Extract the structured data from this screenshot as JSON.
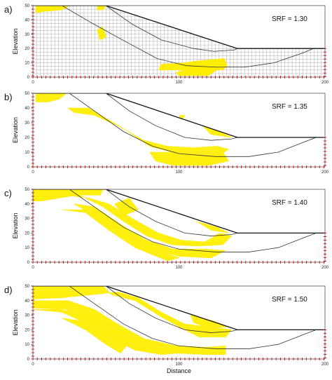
{
  "figure": {
    "x_axis_label": "Distance",
    "y_axis_label": "Elevation"
  },
  "chart_data": [
    {
      "type": "area",
      "panel": "a)",
      "annotation": "SRF = 1.30",
      "xlim": [
        0,
        200
      ],
      "ylim": [
        0,
        50
      ],
      "x_ticks": [
        0,
        100,
        200
      ],
      "y_ticks": [
        0,
        10,
        20,
        30,
        40,
        50
      ],
      "show_mesh": true,
      "slope_surface": [
        [
          0,
          50
        ],
        [
          50,
          50
        ],
        [
          140,
          20
        ],
        [
          200,
          20
        ]
      ],
      "inner_slip_curve": [
        [
          50,
          50
        ],
        [
          68,
          37
        ],
        [
          88,
          26
        ],
        [
          110,
          20
        ],
        [
          124,
          18
        ],
        [
          138,
          19
        ],
        [
          140,
          20
        ]
      ],
      "outer_slip_curve": [
        [
          20,
          50
        ],
        [
          40,
          38
        ],
        [
          65,
          24
        ],
        [
          85,
          13
        ],
        [
          105,
          8
        ],
        [
          125,
          7
        ],
        [
          145,
          7
        ],
        [
          165,
          10
        ],
        [
          185,
          17
        ],
        [
          192,
          20
        ]
      ],
      "plastic_zones": [
        [
          [
            2,
            50
          ],
          [
            25,
            50
          ],
          [
            20,
            47
          ],
          [
            8,
            46
          ],
          [
            2,
            45
          ]
        ],
        [
          [
            44,
            50
          ],
          [
            50,
            50
          ],
          [
            48,
            47
          ],
          [
            44,
            47
          ]
        ],
        [
          [
            44,
            33
          ],
          [
            48,
            35
          ],
          [
            50,
            28
          ],
          [
            46,
            26
          ]
        ],
        [
          [
            105,
            5
          ],
          [
            130,
            5
          ],
          [
            133,
            8
          ],
          [
            131,
            13
          ],
          [
            120,
            12
          ],
          [
            110,
            11
          ],
          [
            104,
            10
          ],
          [
            88,
            9
          ],
          [
            86,
            5
          ]
        ],
        [
          [
            100,
            1
          ],
          [
            120,
            1
          ],
          [
            126,
            5
          ],
          [
            103,
            5
          ],
          [
            98,
            3
          ]
        ]
      ]
    },
    {
      "type": "area",
      "panel": "b)",
      "annotation": "SRF = 1.35",
      "xlim": [
        0,
        200
      ],
      "ylim": [
        0,
        50
      ],
      "x_ticks": [
        0,
        100,
        200
      ],
      "y_ticks": [
        0,
        10,
        20,
        30,
        40,
        50
      ],
      "show_mesh": false,
      "slope_surface": [
        [
          0,
          50
        ],
        [
          50,
          50
        ],
        [
          140,
          20
        ],
        [
          200,
          20
        ]
      ],
      "inner_slip_curve": [
        [
          50,
          50
        ],
        [
          66,
          38
        ],
        [
          84,
          28
        ],
        [
          104,
          20
        ],
        [
          122,
          18
        ],
        [
          136,
          19
        ],
        [
          140,
          20
        ]
      ],
      "outer_slip_curve": [
        [
          25,
          50
        ],
        [
          42,
          38
        ],
        [
          62,
          24
        ],
        [
          82,
          14
        ],
        [
          100,
          9
        ],
        [
          125,
          7
        ],
        [
          148,
          7
        ],
        [
          168,
          10
        ],
        [
          186,
          17
        ],
        [
          194,
          20
        ]
      ],
      "plastic_zones": [
        [
          [
            2,
            50
          ],
          [
            23,
            50
          ],
          [
            18,
            46
          ],
          [
            10,
            44
          ],
          [
            2,
            44
          ]
        ],
        [
          [
            24,
            40
          ],
          [
            38,
            40
          ],
          [
            62,
            26
          ],
          [
            80,
            14
          ],
          [
            95,
            10
          ],
          [
            125,
            6
          ],
          [
            134,
            12
          ],
          [
            126,
            14
          ],
          [
            110,
            13
          ],
          [
            92,
            14
          ],
          [
            76,
            18
          ],
          [
            58,
            28
          ],
          [
            42,
            35
          ],
          [
            28,
            37
          ]
        ],
        [
          [
            80,
            10
          ],
          [
            130,
            10
          ],
          [
            134,
            4
          ],
          [
            120,
            1
          ],
          [
            96,
            1
          ],
          [
            84,
            4
          ]
        ],
        [
          [
            116,
            28
          ],
          [
            132,
            22
          ],
          [
            136,
            20
          ],
          [
            122,
            22
          ]
        ],
        [
          [
            100,
            35
          ],
          [
            104,
            35
          ],
          [
            102,
            32
          ]
        ]
      ]
    },
    {
      "type": "area",
      "panel": "c)",
      "annotation": "SRF = 1.40",
      "xlim": [
        0,
        200
      ],
      "ylim": [
        0,
        50
      ],
      "x_ticks": [
        0,
        100,
        200
      ],
      "y_ticks": [
        0,
        10,
        20,
        30,
        40,
        50
      ],
      "show_mesh": false,
      "slope_surface": [
        [
          0,
          50
        ],
        [
          50,
          50
        ],
        [
          140,
          20
        ],
        [
          200,
          20
        ]
      ],
      "inner_slip_curve": [
        [
          50,
          50
        ],
        [
          66,
          38
        ],
        [
          84,
          28
        ],
        [
          104,
          20
        ],
        [
          122,
          18
        ],
        [
          136,
          19
        ],
        [
          140,
          20
        ]
      ],
      "outer_slip_curve": [
        [
          25,
          50
        ],
        [
          42,
          38
        ],
        [
          62,
          24
        ],
        [
          82,
          14
        ],
        [
          100,
          9
        ],
        [
          125,
          7
        ],
        [
          148,
          7
        ],
        [
          168,
          10
        ],
        [
          186,
          17
        ],
        [
          194,
          20
        ]
      ],
      "plastic_zones": [
        [
          [
            0,
            50
          ],
          [
            48,
            50
          ],
          [
            46,
            46
          ],
          [
            30,
            46
          ],
          [
            18,
            44
          ],
          [
            6,
            42
          ],
          [
            0,
            42
          ]
        ],
        [
          [
            22,
            46
          ],
          [
            32,
            46
          ],
          [
            48,
            38
          ],
          [
            62,
            28
          ],
          [
            78,
            18
          ],
          [
            95,
            12
          ],
          [
            112,
            11
          ],
          [
            130,
            12
          ],
          [
            136,
            18
          ],
          [
            128,
            20
          ],
          [
            118,
            14
          ],
          [
            102,
            15
          ],
          [
            86,
            20
          ],
          [
            68,
            30
          ],
          [
            52,
            40
          ],
          [
            38,
            44
          ]
        ],
        [
          [
            28,
            40
          ],
          [
            42,
            32
          ],
          [
            60,
            20
          ],
          [
            78,
            10
          ],
          [
            100,
            4
          ],
          [
            122,
            3
          ],
          [
            132,
            8
          ],
          [
            118,
            9
          ],
          [
            96,
            9
          ],
          [
            78,
            15
          ],
          [
            60,
            26
          ],
          [
            42,
            38
          ]
        ],
        [
          [
            20,
            36
          ],
          [
            36,
            34
          ],
          [
            52,
            22
          ],
          [
            70,
            10
          ],
          [
            92,
            1
          ],
          [
            100,
            3
          ],
          [
            80,
            10
          ],
          [
            60,
            22
          ],
          [
            40,
            36
          ]
        ],
        [
          [
            56,
            40
          ],
          [
            66,
            44
          ],
          [
            72,
            36
          ],
          [
            62,
            32
          ]
        ],
        [
          [
            112,
            28
          ],
          [
            126,
            24
          ],
          [
            134,
            20
          ],
          [
            122,
            22
          ]
        ]
      ]
    },
    {
      "type": "area",
      "panel": "d)",
      "annotation": "SRF = 1.50",
      "xlim": [
        0,
        200
      ],
      "ylim": [
        0,
        50
      ],
      "x_ticks": [
        0,
        100,
        200
      ],
      "y_ticks": [
        0,
        10,
        20,
        30,
        40,
        50
      ],
      "show_mesh": false,
      "slope_surface": [
        [
          0,
          50
        ],
        [
          50,
          50
        ],
        [
          140,
          20
        ],
        [
          200,
          20
        ]
      ],
      "inner_slip_curve": [
        [
          50,
          50
        ],
        [
          66,
          38
        ],
        [
          84,
          28
        ],
        [
          104,
          20
        ],
        [
          122,
          18
        ],
        [
          136,
          19
        ],
        [
          140,
          20
        ]
      ],
      "outer_slip_curve": [
        [
          25,
          50
        ],
        [
          42,
          38
        ],
        [
          62,
          24
        ],
        [
          82,
          14
        ],
        [
          100,
          9
        ],
        [
          125,
          7
        ],
        [
          148,
          7
        ],
        [
          168,
          10
        ],
        [
          186,
          17
        ],
        [
          194,
          20
        ]
      ],
      "plastic_zones": [
        [
          [
            0,
            50
          ],
          [
            48,
            50
          ],
          [
            54,
            44
          ],
          [
            70,
            40
          ],
          [
            86,
            30
          ],
          [
            100,
            22
          ],
          [
            114,
            15
          ],
          [
            132,
            15
          ],
          [
            136,
            20
          ],
          [
            120,
            22
          ],
          [
            104,
            24
          ],
          [
            88,
            32
          ],
          [
            72,
            42
          ],
          [
            58,
            46
          ],
          [
            40,
            44
          ],
          [
            20,
            42
          ],
          [
            0,
            41
          ]
        ],
        [
          [
            0,
            40
          ],
          [
            24,
            40
          ],
          [
            42,
            34
          ],
          [
            58,
            24
          ],
          [
            76,
            14
          ],
          [
            98,
            9
          ],
          [
            118,
            8
          ],
          [
            132,
            9
          ],
          [
            132,
            3
          ],
          [
            118,
            3
          ],
          [
            96,
            4
          ],
          [
            76,
            8
          ],
          [
            56,
            18
          ],
          [
            40,
            28
          ],
          [
            22,
            34
          ],
          [
            0,
            35
          ]
        ],
        [
          [
            0,
            34
          ],
          [
            20,
            32
          ],
          [
            38,
            24
          ],
          [
            54,
            14
          ],
          [
            70,
            6
          ],
          [
            88,
            3
          ],
          [
            100,
            4
          ],
          [
            90,
            9
          ],
          [
            74,
            12
          ],
          [
            56,
            22
          ],
          [
            38,
            30
          ],
          [
            18,
            34
          ]
        ],
        [
          [
            20,
            28
          ],
          [
            36,
            20
          ],
          [
            50,
            10
          ],
          [
            60,
            4
          ],
          [
            64,
            9
          ],
          [
            50,
            18
          ],
          [
            34,
            26
          ]
        ],
        [
          [
            108,
            30
          ],
          [
            124,
            26
          ],
          [
            134,
            22
          ],
          [
            120,
            21
          ],
          [
            110,
            25
          ]
        ]
      ]
    }
  ]
}
